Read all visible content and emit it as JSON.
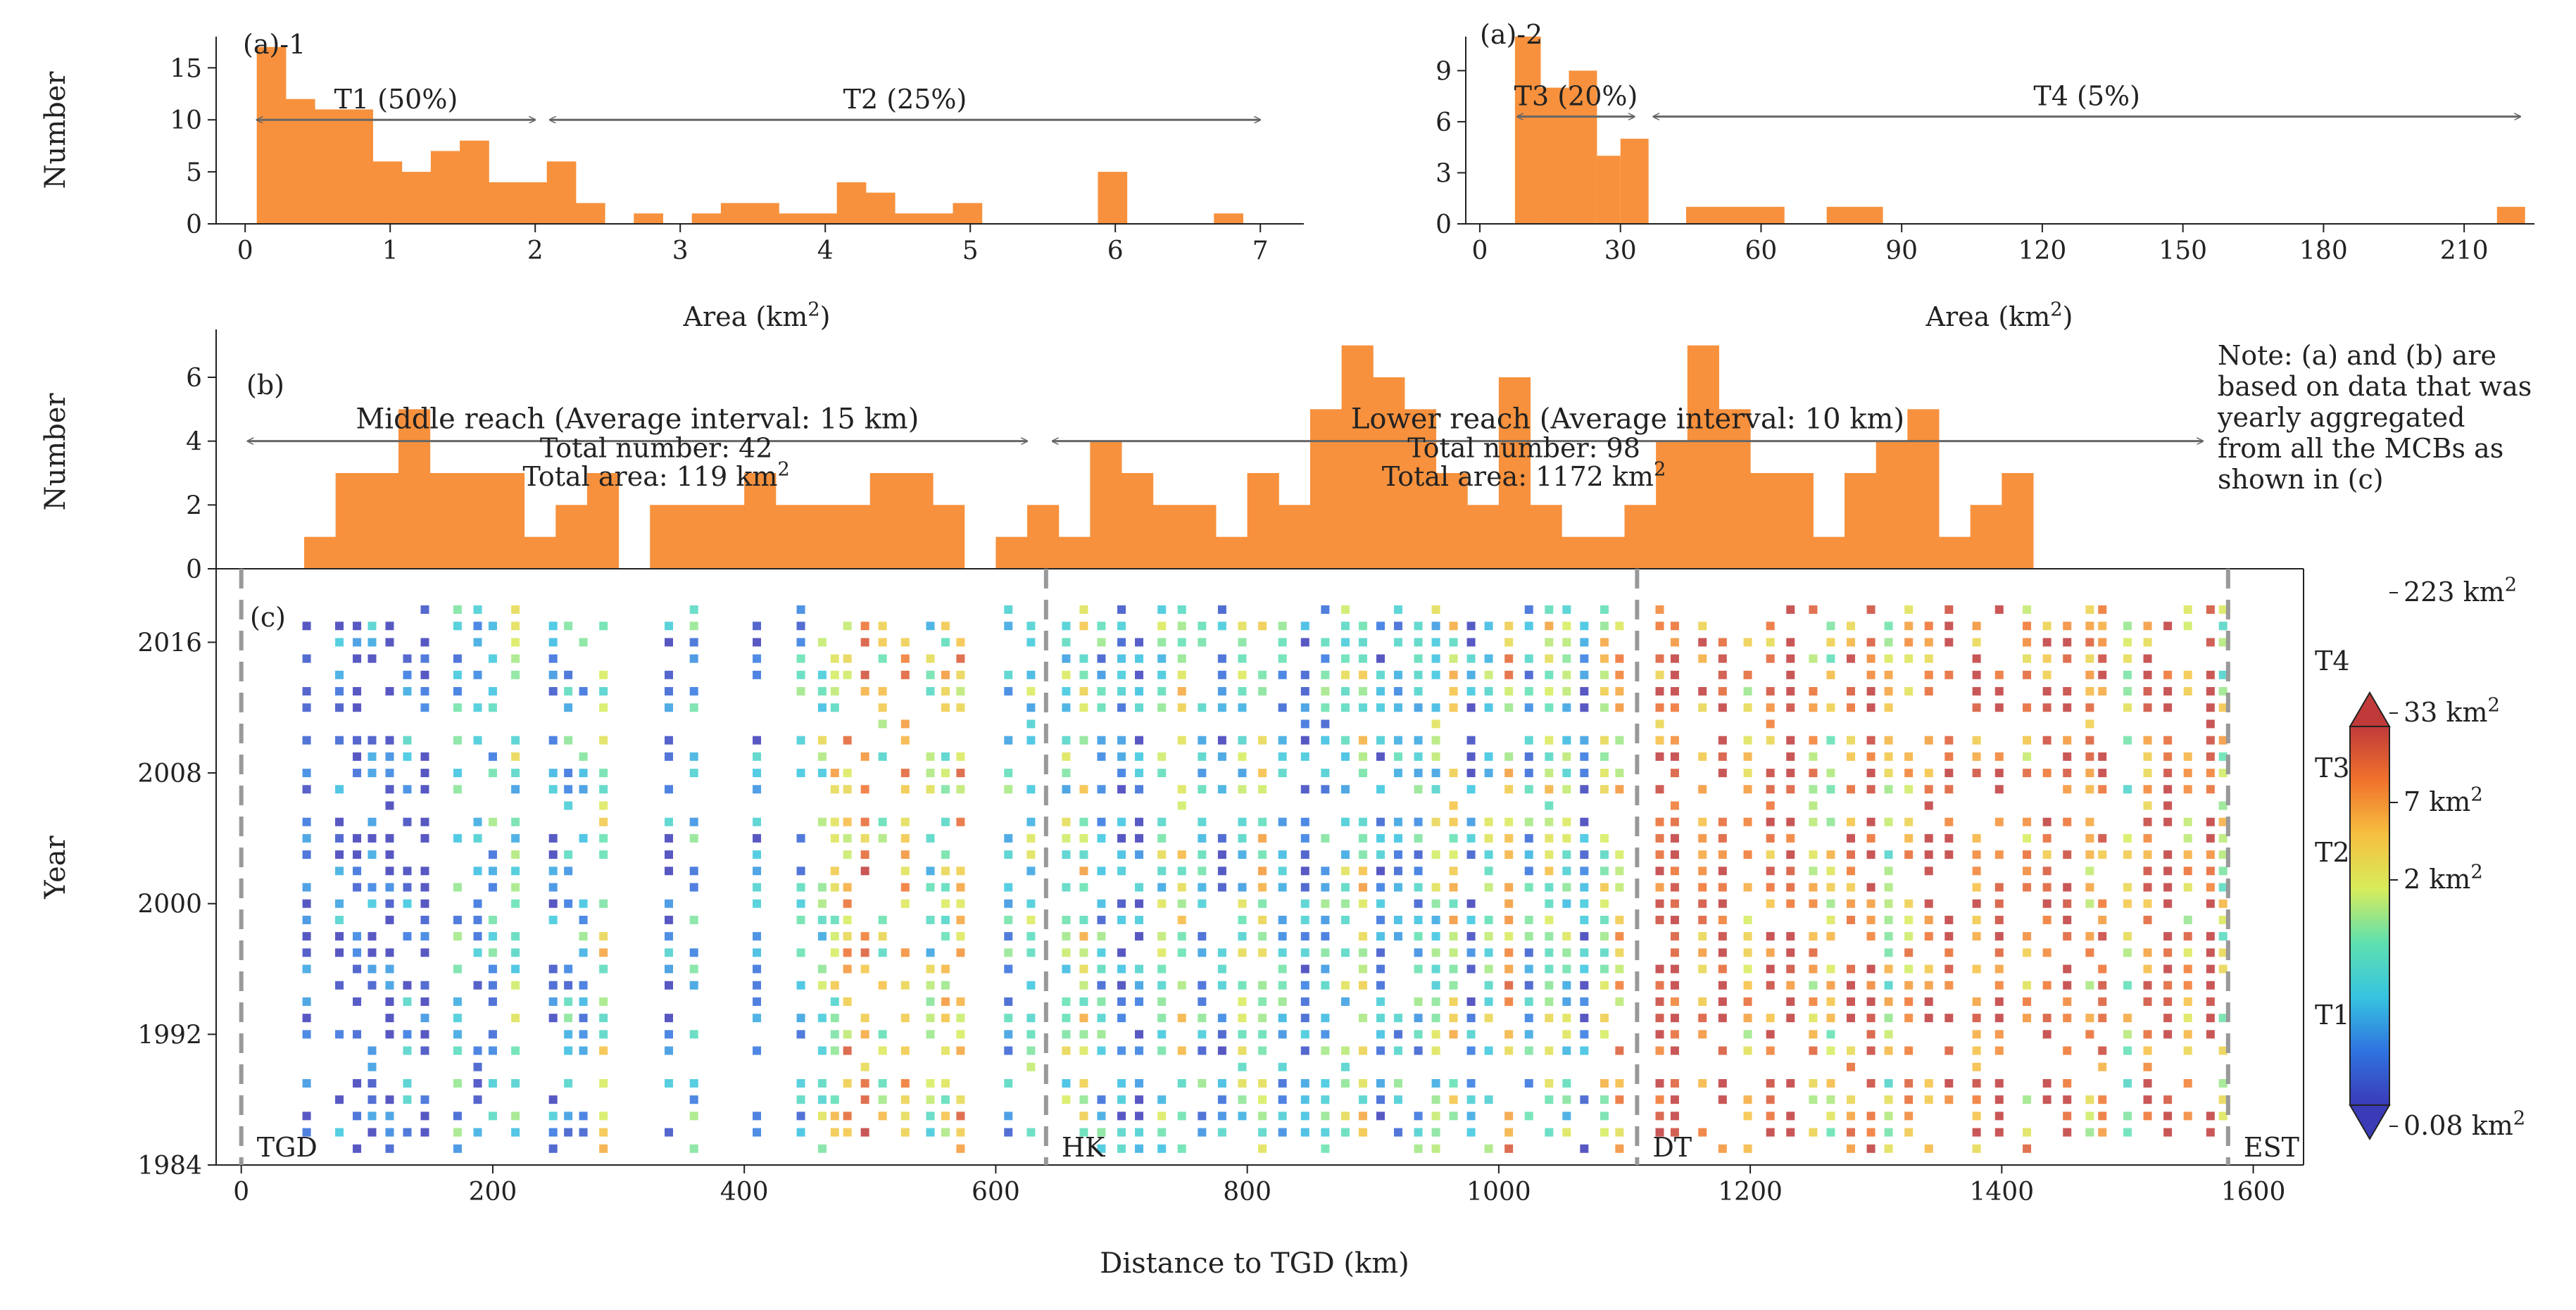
{
  "colors": {
    "bar": "#f7913d",
    "arrow": "#666666",
    "axis": "#222222",
    "dash": "#999999",
    "colormap": [
      "#3b3bb8",
      "#2f73e0",
      "#36c4e0",
      "#5fe0b0",
      "#d7ec5a",
      "#f6c040",
      "#f0722c",
      "#c03a3a"
    ]
  },
  "chart_data": [
    {
      "id": "a1",
      "type": "bar",
      "panel_label": "(a)-1",
      "xlabel": "Area (km²)",
      "ylabel": "Number",
      "xlim": [
        -0.2,
        7.3
      ],
      "ylim": [
        0,
        18
      ],
      "xticks": [
        "0",
        "1",
        "2",
        "3",
        "4",
        "5",
        "6",
        "7"
      ],
      "xtick_values": [
        0,
        1,
        2,
        3,
        4,
        5,
        6,
        7
      ],
      "yticks": [
        "0",
        "5",
        "10",
        "15"
      ],
      "ytick_values": [
        0,
        5,
        10,
        15
      ],
      "bin_width": 0.2,
      "bin_start": 0.08,
      "values": [
        17,
        12,
        11,
        11,
        6,
        5,
        7,
        8,
        4,
        4,
        6,
        2,
        0,
        1,
        0,
        1,
        2,
        2,
        1,
        1,
        4,
        3,
        1,
        1,
        2,
        0,
        0,
        0,
        0,
        5,
        0,
        0,
        0,
        1
      ],
      "annotations": [
        {
          "text": "T1 (50%)",
          "from": 0.08,
          "to": 2.0,
          "y": 10
        },
        {
          "text": "T2 (25%)",
          "from": 2.1,
          "to": 7.0,
          "y": 10
        }
      ]
    },
    {
      "id": "a2",
      "type": "bar",
      "panel_label": "(a)-2",
      "xlabel": "Area (km²)",
      "ylabel": "",
      "xlim": [
        -3,
        225
      ],
      "ylim": [
        0,
        11
      ],
      "xticks": [
        "0",
        "30",
        "60",
        "90",
        "120",
        "150",
        "180",
        "210"
      ],
      "xtick_values": [
        0,
        30,
        60,
        90,
        120,
        150,
        180,
        210
      ],
      "yticks": [
        "0",
        "3",
        "6",
        "9"
      ],
      "ytick_values": [
        0,
        3,
        6,
        9
      ],
      "bins": [
        {
          "x0": 7.5,
          "x1": 13,
          "v": 11
        },
        {
          "x0": 13,
          "x1": 19,
          "v": 8
        },
        {
          "x0": 19,
          "x1": 25,
          "v": 9
        },
        {
          "x0": 25,
          "x1": 30,
          "v": 4
        },
        {
          "x0": 30,
          "x1": 36,
          "v": 5
        },
        {
          "x0": 44,
          "x1": 65,
          "v": 1
        },
        {
          "x0": 74,
          "x1": 86,
          "v": 1
        },
        {
          "x0": 217,
          "x1": 223,
          "v": 1
        }
      ],
      "annotations": [
        {
          "text": "T3 (20%)",
          "from": 8,
          "to": 33,
          "y": 6.3
        },
        {
          "text": "T4 (5%)",
          "from": 37,
          "to": 222,
          "y": 6.3
        }
      ]
    },
    {
      "id": "b",
      "type": "bar",
      "panel_label": "(b)",
      "xlabel": "",
      "ylabel": "Number",
      "xlim": [
        -20,
        1640
      ],
      "ylim": [
        0,
        7.5
      ],
      "yticks": [
        "0",
        "2",
        "4",
        "6"
      ],
      "ytick_values": [
        0,
        2,
        4,
        6
      ],
      "bin_width": 25,
      "bin_start": 50,
      "values": [
        1,
        3,
        3,
        5,
        3,
        3,
        3,
        1,
        2,
        3,
        0,
        2,
        2,
        2,
        3,
        2,
        2,
        2,
        3,
        3,
        2,
        0,
        1,
        2,
        1,
        4,
        3,
        2,
        2,
        1,
        3,
        2,
        5,
        7,
        6,
        5,
        3,
        2,
        6,
        2,
        1,
        1,
        2,
        4,
        7,
        5,
        3,
        3,
        1,
        3,
        4,
        5,
        1,
        2,
        3
      ],
      "annotations": [
        {
          "text": "Middle reach (Average interval: 15 km)",
          "from": 5,
          "to": 625,
          "y": 4
        },
        {
          "text": "Lower reach (Average interval: 10 km)",
          "from": 645,
          "to": 1560,
          "y": 4
        }
      ],
      "totals": [
        {
          "line1": "Total number: 42",
          "line2": "Total area: 119 km²",
          "x": 330
        },
        {
          "line1": "Total number: 98",
          "line2": "Total area: 1172 km²",
          "x": 1020
        }
      ]
    },
    {
      "id": "c",
      "type": "scatter",
      "panel_label": "(c)",
      "xlabel": "Distance to TGD (km)",
      "ylabel": "Year",
      "xlim": [
        -20,
        1640
      ],
      "ylim": [
        1984,
        2020.5
      ],
      "xticks": [
        "0",
        "200",
        "400",
        "600",
        "800",
        "1000",
        "1200",
        "1400",
        "1600"
      ],
      "xtick_values": [
        0,
        200,
        400,
        600,
        800,
        1000,
        1200,
        1400,
        1600
      ],
      "yticks": [
        "1984",
        "1992",
        "2000",
        "2008",
        "2016"
      ],
      "ytick_values": [
        1984,
        1992,
        2000,
        2008,
        2016
      ],
      "stations": [
        {
          "name": "TGD",
          "x": 0
        },
        {
          "name": "HK",
          "x": 640
        },
        {
          "name": "DT",
          "x": 1110
        },
        {
          "name": "EST",
          "x": 1580
        }
      ],
      "columns": [
        [
          52,
          1,
          0
        ],
        [
          78,
          2,
          1
        ],
        [
          92,
          1,
          2
        ],
        [
          104,
          2,
          3
        ],
        [
          118,
          1,
          4
        ],
        [
          132,
          2,
          5
        ],
        [
          146,
          1,
          6
        ],
        [
          172,
          3,
          7
        ],
        [
          188,
          2,
          8
        ],
        [
          200,
          3,
          9
        ],
        [
          218,
          4,
          10
        ],
        [
          248,
          2,
          11
        ],
        [
          260,
          3,
          12
        ],
        [
          272,
          3,
          13
        ],
        [
          288,
          5,
          14
        ],
        [
          340,
          2,
          15
        ],
        [
          360,
          3,
          16
        ],
        [
          410,
          2,
          17
        ],
        [
          445,
          3,
          18
        ],
        [
          462,
          4,
          19
        ],
        [
          472,
          5,
          20
        ],
        [
          482,
          6,
          21
        ],
        [
          496,
          7,
          22
        ],
        [
          510,
          5,
          23
        ],
        [
          528,
          6,
          24
        ],
        [
          548,
          4,
          25
        ],
        [
          560,
          5,
          26
        ],
        [
          572,
          6,
          27
        ],
        [
          610,
          3,
          28
        ],
        [
          628,
          4,
          29
        ],
        [
          656,
          4,
          30
        ],
        [
          670,
          5,
          31
        ],
        [
          684,
          3,
          32
        ],
        [
          700,
          2,
          33
        ],
        [
          714,
          2,
          34
        ],
        [
          732,
          4,
          35
        ],
        [
          748,
          5,
          36
        ],
        [
          764,
          3,
          37
        ],
        [
          780,
          2,
          38
        ],
        [
          796,
          4,
          39
        ],
        [
          812,
          5,
          40
        ],
        [
          828,
          3,
          41
        ],
        [
          846,
          2,
          42
        ],
        [
          862,
          3,
          43
        ],
        [
          878,
          4,
          44
        ],
        [
          892,
          5,
          45
        ],
        [
          906,
          2,
          46
        ],
        [
          920,
          3,
          47
        ],
        [
          936,
          3,
          48
        ],
        [
          950,
          4,
          49
        ],
        [
          964,
          5,
          50
        ],
        [
          978,
          2,
          51
        ],
        [
          992,
          4,
          52
        ],
        [
          1008,
          6,
          53
        ],
        [
          1024,
          3,
          54
        ],
        [
          1040,
          5,
          55
        ],
        [
          1054,
          4,
          56
        ],
        [
          1068,
          2,
          57
        ],
        [
          1084,
          5,
          58
        ],
        [
          1096,
          6,
          59
        ],
        [
          1128,
          7,
          60
        ],
        [
          1140,
          8,
          61
        ],
        [
          1162,
          7,
          62
        ],
        [
          1178,
          8,
          63
        ],
        [
          1198,
          6,
          64
        ],
        [
          1216,
          7,
          65
        ],
        [
          1232,
          8,
          66
        ],
        [
          1250,
          6,
          67
        ],
        [
          1264,
          5,
          68
        ],
        [
          1280,
          7,
          69
        ],
        [
          1296,
          8,
          70
        ],
        [
          1310,
          5,
          71
        ],
        [
          1326,
          6,
          72
        ],
        [
          1342,
          7,
          73
        ],
        [
          1358,
          8,
          74
        ],
        [
          1380,
          7,
          75
        ],
        [
          1398,
          8,
          76
        ],
        [
          1420,
          6,
          77
        ],
        [
          1436,
          7,
          78
        ],
        [
          1452,
          8,
          79
        ],
        [
          1470,
          6,
          80
        ],
        [
          1480,
          7,
          81
        ],
        [
          1500,
          5,
          82
        ],
        [
          1516,
          7,
          83
        ],
        [
          1532,
          8,
          84
        ],
        [
          1548,
          6,
          85
        ],
        [
          1566,
          8,
          86
        ],
        [
          1576,
          5,
          87
        ]
      ]
    },
    {
      "id": "colorbar",
      "type": "heatmap",
      "labels": [
        "223 km²",
        "33 km²",
        "7 km²",
        "2 km²",
        "0.08 km²"
      ],
      "tiers": [
        "T4",
        "T3",
        "T2",
        "T1"
      ]
    }
  ],
  "note": {
    "lines": [
      "Note: (a) and (b) are",
      " based on data that was",
      "yearly aggregated",
      "from all the MCBs as",
      "shown in (c)"
    ]
  }
}
